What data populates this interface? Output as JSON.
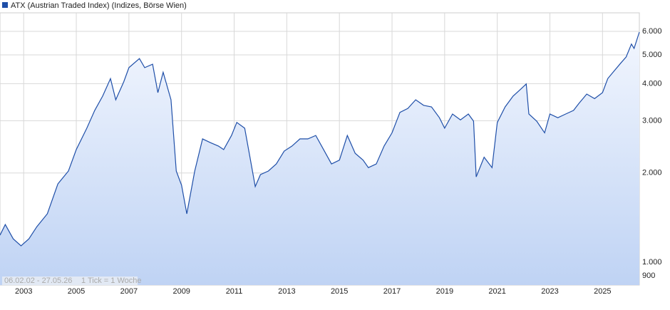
{
  "chart_data": {
    "type": "area",
    "series": [
      {
        "name": "ATX (Austrian Traded Index) (Indizes, Börse Wien)",
        "color": "#1f4fa8",
        "values": [
          1234,
          1340,
          1200,
          1136,
          1200,
          1318,
          1457,
          1838,
          2030,
          2398,
          2830,
          3250,
          3630,
          4160,
          3530,
          4050,
          4530,
          4860,
          4530,
          4650,
          3730,
          4370,
          3530,
          2030,
          1820,
          1457,
          2030,
          2605,
          2530,
          2465,
          2398,
          2675,
          2960,
          2830,
          2260,
          1800,
          1975,
          2030,
          2145,
          2370,
          2465,
          2605,
          2605,
          2675,
          2398,
          2145,
          2210,
          2675,
          2330,
          2210,
          2085,
          2145,
          2465,
          2730,
          3200,
          3300,
          3530,
          3380,
          3340,
          3070,
          2830,
          3160,
          3020,
          3160,
          2990,
          1940,
          2260,
          2085,
          2960,
          3340,
          3630,
          3840,
          3990,
          3160,
          2990,
          2730,
          3160,
          3070,
          3160,
          3250,
          3430,
          3690,
          3560,
          3730,
          4160,
          4370,
          4700,
          4920,
          5440,
          5260,
          5970
        ]
      }
    ],
    "x": [
      2002.1,
      2002.3,
      2002.6,
      2002.9,
      2003.2,
      2003.5,
      2003.9,
      2004.3,
      2004.7,
      2005.0,
      2005.4,
      2005.7,
      2006.0,
      2006.3,
      2006.5,
      2006.8,
      2007.0,
      2007.4,
      2007.6,
      2007.9,
      2008.1,
      2008.3,
      2008.6,
      2008.8,
      2009.0,
      2009.2,
      2009.5,
      2009.8,
      2010.1,
      2010.4,
      2010.6,
      2010.9,
      2011.1,
      2011.4,
      2011.6,
      2011.8,
      2012.0,
      2012.3,
      2012.6,
      2012.9,
      2013.2,
      2013.5,
      2013.8,
      2014.1,
      2014.4,
      2014.7,
      2015.0,
      2015.3,
      2015.6,
      2015.9,
      2016.1,
      2016.4,
      2016.7,
      2017.0,
      2017.3,
      2017.6,
      2017.9,
      2018.2,
      2018.5,
      2018.8,
      2019.0,
      2019.3,
      2019.6,
      2019.9,
      2020.1,
      2020.2,
      2020.5,
      2020.8,
      2021.0,
      2021.3,
      2021.6,
      2021.9,
      2022.1,
      2022.2,
      2022.5,
      2022.8,
      2023.0,
      2023.3,
      2023.6,
      2023.9,
      2024.1,
      2024.4,
      2024.7,
      2025.0,
      2025.2,
      2025.4,
      2025.7,
      2025.9,
      2026.1,
      2026.2,
      2026.4
    ],
    "xlim": [
      2002.1,
      2026.4
    ],
    "xticks": [
      2003,
      2005,
      2007,
      2009,
      2011,
      2013,
      2015,
      2017,
      2019,
      2021,
      2023,
      2025
    ],
    "ylim": [
      838,
      6930
    ],
    "yticks": [
      900,
      {
        "value": 1000,
        "label": "1.000"
      },
      {
        "value": 2000,
        "label": "2.000"
      },
      {
        "value": 3000,
        "label": "3.000"
      },
      {
        "value": 4000,
        "label": "4.000"
      },
      {
        "value": 5000,
        "label": "5.000"
      },
      {
        "value": 6000,
        "label": "6.000"
      }
    ],
    "log_scale": true,
    "grid": true,
    "date_range": "06.02.02 - 27.05.26",
    "tick_note": "1 Tick = 1 Woche"
  }
}
